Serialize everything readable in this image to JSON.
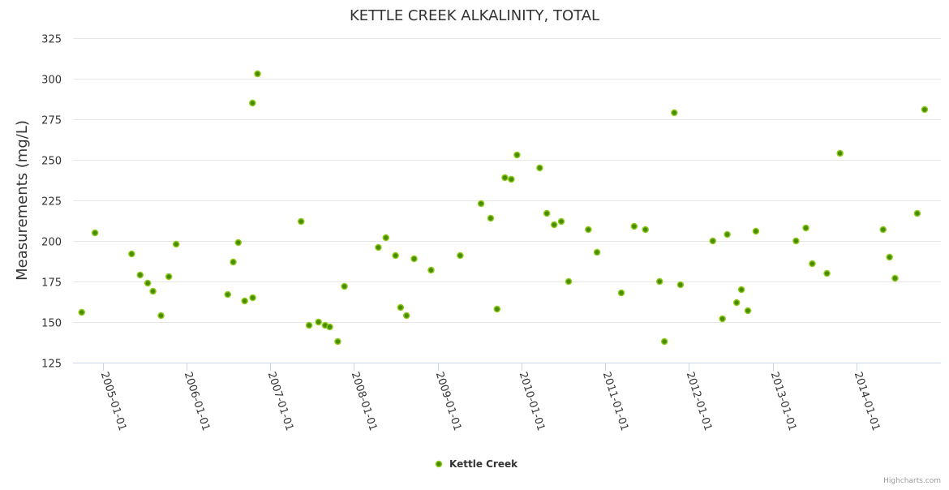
{
  "chart_data": {
    "type": "scatter",
    "title": "KETTLE CREEK ALKALINITY, TOTAL",
    "xlabel": "",
    "ylabel": "Measurements (mg/L)",
    "ylim": [
      125,
      325
    ],
    "yticks": [
      125,
      150,
      175,
      200,
      225,
      250,
      275,
      300,
      325
    ],
    "xlim": [
      "2004-08-24",
      "2015-01-05"
    ],
    "xticks": [
      "2005-01-01",
      "2006-01-01",
      "2007-01-01",
      "2008-01-01",
      "2009-01-01",
      "2010-01-01",
      "2011-01-01",
      "2012-01-01",
      "2013-01-01",
      "2014-01-01"
    ],
    "grid": true,
    "legend_position": "bottom-center",
    "series": [
      {
        "name": "Kettle Creek",
        "color": "#6aa800",
        "points": [
          [
            "2004-10-01",
            156
          ],
          [
            "2004-11-28",
            205
          ],
          [
            "2005-05-07",
            192
          ],
          [
            "2005-06-13",
            179
          ],
          [
            "2005-07-16",
            174
          ],
          [
            "2005-08-08",
            169
          ],
          [
            "2005-09-12",
            154
          ],
          [
            "2005-10-16",
            178
          ],
          [
            "2005-11-17",
            198
          ],
          [
            "2006-06-30",
            167
          ],
          [
            "2006-07-24",
            187
          ],
          [
            "2006-08-15",
            199
          ],
          [
            "2006-09-12",
            163
          ],
          [
            "2006-10-17",
            165
          ],
          [
            "2006-10-16",
            285
          ],
          [
            "2006-11-07",
            303
          ],
          [
            "2007-05-16",
            212
          ],
          [
            "2007-06-20",
            148
          ],
          [
            "2007-07-31",
            150
          ],
          [
            "2007-08-29",
            148
          ],
          [
            "2007-09-18",
            147
          ],
          [
            "2007-10-23",
            138
          ],
          [
            "2007-11-21",
            172
          ],
          [
            "2008-04-17",
            196
          ],
          [
            "2008-05-20",
            202
          ],
          [
            "2008-07-01",
            191
          ],
          [
            "2008-07-23",
            159
          ],
          [
            "2008-08-18",
            154
          ],
          [
            "2008-09-20",
            189
          ],
          [
            "2008-12-03",
            182
          ],
          [
            "2009-04-09",
            191
          ],
          [
            "2009-07-09",
            223
          ],
          [
            "2009-08-20",
            214
          ],
          [
            "2009-09-17",
            158
          ],
          [
            "2009-10-21",
            239
          ],
          [
            "2009-11-18",
            238
          ],
          [
            "2009-12-13",
            253
          ],
          [
            "2010-03-22",
            245
          ],
          [
            "2010-04-22",
            217
          ],
          [
            "2010-05-24",
            210
          ],
          [
            "2010-06-24",
            212
          ],
          [
            "2010-07-26",
            175
          ],
          [
            "2010-10-20",
            207
          ],
          [
            "2010-11-27",
            193
          ],
          [
            "2011-03-13",
            168
          ],
          [
            "2011-05-08",
            209
          ],
          [
            "2011-06-26",
            207
          ],
          [
            "2011-08-27",
            175
          ],
          [
            "2011-09-17",
            138
          ],
          [
            "2011-10-30",
            279
          ],
          [
            "2011-11-26",
            173
          ],
          [
            "2012-04-15",
            200
          ],
          [
            "2012-05-27",
            152
          ],
          [
            "2012-06-17",
            204
          ],
          [
            "2012-07-28",
            162
          ],
          [
            "2012-08-18",
            170
          ],
          [
            "2012-09-15",
            157
          ],
          [
            "2012-10-20",
            206
          ],
          [
            "2013-04-13",
            200
          ],
          [
            "2013-05-26",
            208
          ],
          [
            "2013-06-23",
            186
          ],
          [
            "2013-08-26",
            180
          ],
          [
            "2013-10-22",
            254
          ],
          [
            "2014-04-28",
            207
          ],
          [
            "2014-05-26",
            190
          ],
          [
            "2014-06-19",
            177
          ],
          [
            "2014-09-24",
            217
          ],
          [
            "2014-10-26",
            281
          ]
        ]
      }
    ]
  },
  "credits": "Highcharts.com"
}
